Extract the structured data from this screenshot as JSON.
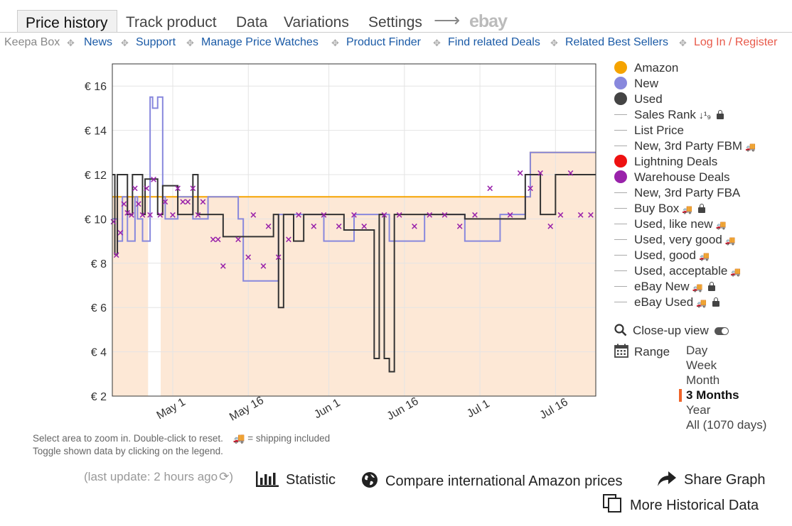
{
  "tabs": [
    {
      "label": "Price history",
      "active": true
    },
    {
      "label": "Track product"
    },
    {
      "label": "Data"
    },
    {
      "label": "Variations"
    },
    {
      "label": "Settings"
    }
  ],
  "ebay_logo": "ebay",
  "links": {
    "keepa_box": "Keepa Box",
    "news": "News",
    "support": "Support",
    "manage_price_watches": "Manage Price Watches",
    "product_finder": "Product Finder",
    "find_related_deals": "Find related Deals",
    "related_best_sellers": "Related Best Sellers",
    "login_register": "Log In / Register"
  },
  "legend": [
    {
      "label": "Amazon",
      "marker": "dot",
      "color": "#f5a300"
    },
    {
      "label": "New",
      "marker": "dot",
      "color": "#8888dd"
    },
    {
      "label": "Used",
      "marker": "dot",
      "color": "#444444"
    },
    {
      "label": "Sales Rank",
      "marker": "line",
      "icon": "sort-icon",
      "locked": true
    },
    {
      "label": "List Price",
      "marker": "line"
    },
    {
      "label": "New, 3rd Party FBM",
      "marker": "line",
      "shipping": true
    },
    {
      "label": "Lightning Deals",
      "marker": "dot",
      "color": "#ee1111"
    },
    {
      "label": "Warehouse Deals",
      "marker": "dot",
      "color": "#9922aa"
    },
    {
      "label": "New, 3rd Party FBA",
      "marker": "line"
    },
    {
      "label": "Buy Box",
      "marker": "line",
      "shipping": true,
      "locked": true
    },
    {
      "label": "Used, like new",
      "marker": "line",
      "shipping": true
    },
    {
      "label": "Used, very good",
      "marker": "line",
      "shipping": true
    },
    {
      "label": "Used, good",
      "marker": "line",
      "shipping": true
    },
    {
      "label": "Used, acceptable",
      "marker": "line",
      "shipping": true
    },
    {
      "label": "eBay New",
      "marker": "line",
      "shipping": true,
      "locked": true
    },
    {
      "label": "eBay Used",
      "marker": "line",
      "shipping": true,
      "locked": true
    }
  ],
  "closeup_label": "Close-up view",
  "range": {
    "label": "Range",
    "options": [
      "Day",
      "Week",
      "Month",
      "3 Months",
      "Year",
      "All (1070 days)"
    ],
    "selected": "3 Months"
  },
  "notes": {
    "zoom_hint": "Select area to zoom in. Double-click to reset.",
    "shipping_hint": "= shipping included",
    "toggle_hint": "Toggle shown data by clicking on the legend."
  },
  "last_update": "(last update: 2 hours ago",
  "actions": {
    "statistic": "Statistic",
    "compare": "Compare international Amazon prices",
    "share": "Share Graph",
    "more_history": "More Historical Data"
  },
  "colors": {
    "amazon": "#f5a300",
    "new": "#8888dd",
    "used": "#333333",
    "warehouse": "#9922aa",
    "fill": "#fde8d6",
    "link": "#1a5aa6",
    "login": "#e8594a"
  },
  "chart_data": {
    "type": "line",
    "currency": "€",
    "y_ticks": [
      "€ 16",
      "€ 14",
      "€ 12",
      "€ 10",
      "€ 8",
      "€ 6",
      "€ 4",
      "€ 2"
    ],
    "ylim": [
      2,
      17
    ],
    "x_ticks": [
      "May 1",
      "May 16",
      "Jun 1",
      "Jun 16",
      "Jul 1",
      "Jul 16"
    ],
    "x_tick_days": [
      12,
      27,
      43,
      58,
      73,
      88
    ],
    "xlim": [
      0,
      96
    ],
    "gap_days": [
      7.1,
      9.6
    ],
    "series": [
      {
        "name": "Amazon",
        "x": [
          0,
          10,
          10,
          10.3,
          10.3,
          70,
          70,
          83,
          83,
          96
        ],
        "y": [
          11,
          11,
          11,
          11,
          11,
          11,
          11,
          11,
          13,
          13
        ]
      },
      {
        "name": "New",
        "x": [
          0,
          1,
          1,
          2,
          2,
          3,
          3,
          4.5,
          4.5,
          5,
          5,
          6,
          6,
          7.5,
          7.5,
          8,
          8,
          9,
          9,
          10,
          10,
          10.5,
          10.5,
          13,
          13,
          16,
          16,
          19,
          19,
          25,
          25,
          26,
          26,
          33,
          33,
          42,
          42,
          48,
          48,
          55,
          55,
          62,
          62,
          70,
          70,
          77,
          77,
          82,
          82,
          83,
          83,
          96
        ],
        "y": [
          10,
          10,
          9,
          9,
          11,
          11,
          9,
          9,
          11,
          11,
          10,
          10,
          9,
          9,
          15.5,
          15.5,
          15,
          15,
          15.5,
          15.5,
          11,
          11,
          10,
          10,
          11,
          11,
          10,
          10,
          11,
          11,
          10,
          10,
          7.2,
          7.2,
          10.2,
          10.2,
          9,
          9,
          10.2,
          10.2,
          9,
          9,
          10.2,
          10.2,
          9,
          9,
          10.2,
          10.2,
          11,
          11,
          13,
          13
        ]
      },
      {
        "name": "Used",
        "x": [
          0,
          0.5,
          0.5,
          1,
          1,
          3,
          3,
          4,
          4,
          6,
          6,
          6.5,
          6.5,
          9,
          9,
          10,
          10,
          13,
          13,
          16,
          16,
          17,
          17,
          22,
          22,
          32,
          32,
          33,
          33,
          34,
          34,
          36,
          36,
          38,
          38,
          46,
          46,
          52,
          52,
          53,
          53,
          54,
          54,
          55,
          55,
          56,
          56,
          57,
          57,
          58,
          58,
          70,
          70,
          82,
          82,
          85,
          85,
          88,
          88,
          96
        ],
        "y": [
          12,
          12,
          8.4,
          8.4,
          12,
          12,
          10.2,
          10.2,
          12,
          12,
          10.2,
          10.2,
          11.8,
          11.8,
          10.2,
          10.2,
          11.5,
          11.5,
          10.2,
          10.2,
          12,
          12,
          10.2,
          10.2,
          9.2,
          9.2,
          10.2,
          10.2,
          6,
          6,
          10.2,
          10.2,
          9,
          9,
          10.2,
          10.2,
          9.5,
          9.5,
          3.7,
          3.7,
          10.2,
          10.2,
          3.7,
          3.7,
          3.1,
          3.1,
          10.2,
          10.2,
          10.2,
          10.2,
          10.2,
          10.2,
          10,
          10,
          12,
          12,
          10.2,
          10.2,
          12,
          12
        ]
      },
      {
        "name": "Warehouse Deals",
        "x": [
          0.2,
          0.8,
          1.6,
          2.3,
          3,
          3.8,
          4.5,
          5.2,
          6,
          6.8,
          7.5,
          8.2,
          9.5,
          10.5,
          12,
          13,
          14,
          15,
          16,
          17,
          18,
          20,
          21,
          22,
          25,
          27,
          28,
          30,
          31,
          33,
          35,
          37,
          40,
          42,
          45,
          48,
          50,
          54,
          57,
          60,
          63,
          66,
          69,
          72,
          75,
          79,
          81,
          83,
          85,
          87,
          89,
          91,
          93,
          95
        ],
        "y": [
          9.9,
          8.4,
          9.4,
          10.7,
          10.3,
          10.2,
          11.4,
          10.7,
          10.2,
          11.4,
          10.2,
          11.8,
          10.2,
          10.8,
          10.2,
          11.4,
          10.8,
          10.8,
          11.4,
          10.2,
          10.8,
          9.1,
          9.1,
          7.9,
          9.1,
          8.3,
          10.2,
          7.9,
          9.7,
          8.3,
          9.1,
          10.2,
          9.7,
          10.2,
          9.7,
          10.2,
          9.7,
          10.2,
          10.2,
          9.7,
          10.2,
          10.2,
          9.7,
          10.2,
          11.4,
          10.2,
          12.1,
          11.4,
          12.1,
          9.7,
          10.2,
          12.1,
          10.2,
          10.2
        ]
      }
    ]
  }
}
